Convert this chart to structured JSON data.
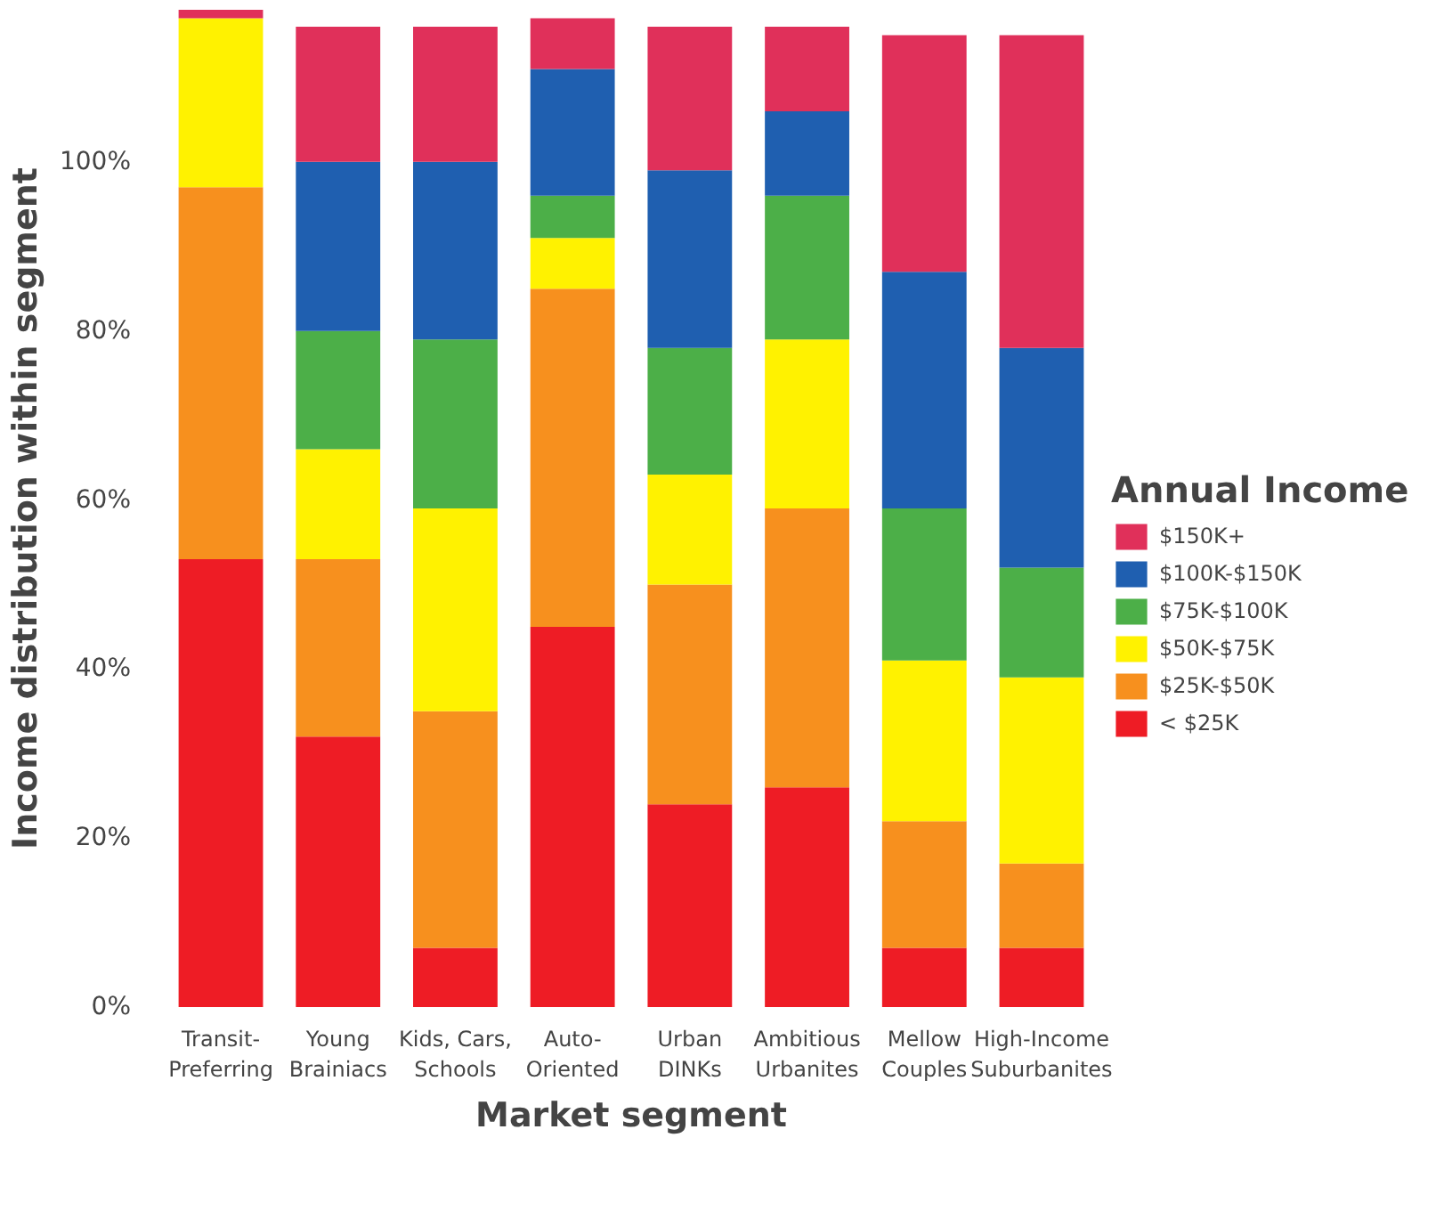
{
  "chart_data": {
    "type": "bar",
    "stacked": true,
    "xlabel": "Market segment",
    "ylabel": "Income distribution within segment",
    "legend_title": "Annual Income",
    "legend": "right",
    "categories": [
      "Transit-\nPreferring",
      "Young\nBrainiacs",
      "Kids, Cars,\nSchools",
      "Auto-\nOriented",
      "Urban\nDINKs",
      "Ambitious\nUrbanites",
      "Mellow\nCouples",
      "High-Income\nSuburbanites"
    ],
    "ylim": [
      0,
      118
    ],
    "yticks": [
      {
        "value": 0,
        "label": "0%"
      },
      {
        "value": 20,
        "label": "20%"
      },
      {
        "value": 40,
        "label": "40%"
      },
      {
        "value": 60,
        "label": "60%"
      },
      {
        "value": 80,
        "label": "80%"
      },
      {
        "value": 100,
        "label": "100%"
      }
    ],
    "series": [
      {
        "name": "< $25K",
        "color": "#ee1c25",
        "values": [
          53,
          32,
          7,
          45,
          24,
          26,
          7,
          7
        ]
      },
      {
        "name": "$25K-$50K",
        "color": "#f7901e",
        "values": [
          44,
          21,
          28,
          40,
          26,
          33,
          15,
          10
        ]
      },
      {
        "name": "$50K-$75K",
        "color": "#fff200",
        "values": [
          20,
          13,
          24,
          6,
          13,
          20,
          19,
          22
        ]
      },
      {
        "name": "$75K-$100K",
        "color": "#4caf48",
        "values": [
          0,
          14,
          20,
          5,
          15,
          17,
          18,
          13
        ]
      },
      {
        "name": "$100K-$150K",
        "color": "#1f5fb0",
        "values": [
          0,
          20,
          21,
          15,
          21,
          10,
          28,
          26
        ]
      },
      {
        "name": "$150K+",
        "color": "#e0305a",
        "values": [
          1,
          16,
          16,
          6,
          17,
          10,
          28,
          37
        ]
      }
    ]
  }
}
